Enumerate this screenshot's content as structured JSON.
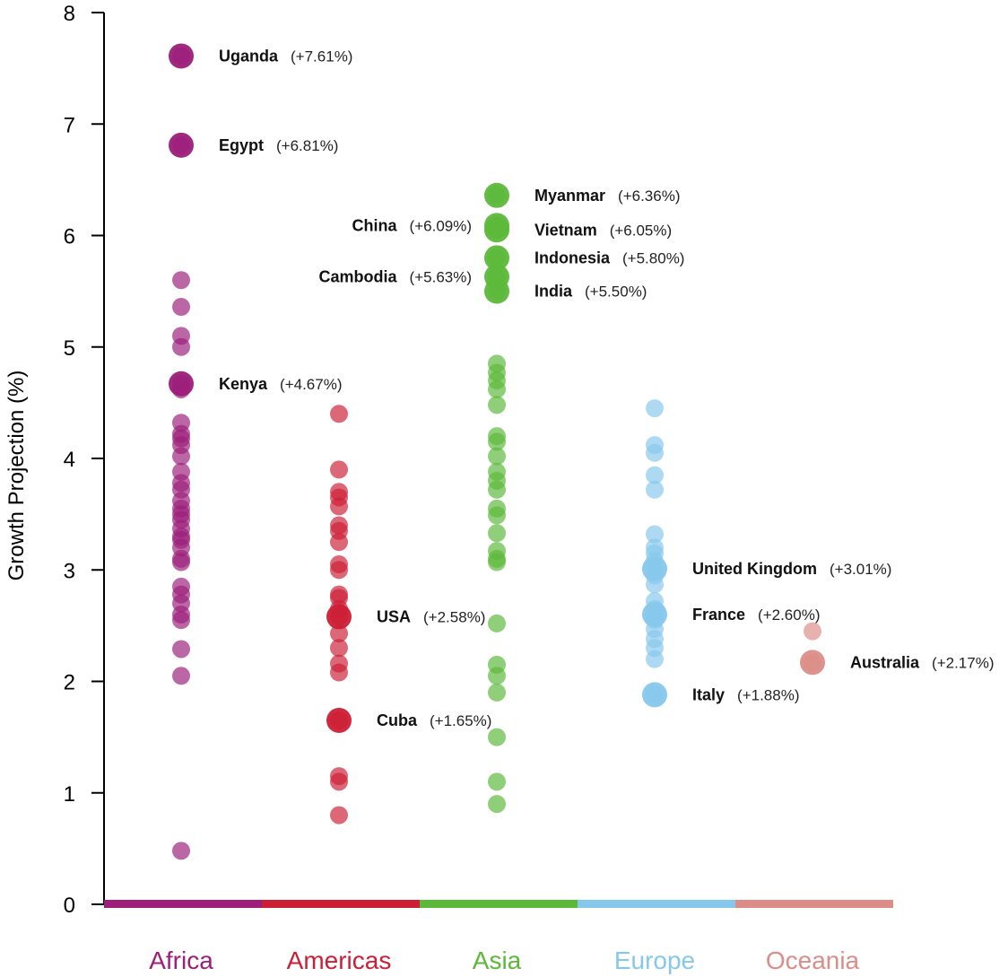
{
  "chart_data": {
    "type": "scatter",
    "title": "",
    "xlabel": "",
    "ylabel": "Growth Projection (%)",
    "ylim": [
      0,
      8
    ],
    "yticks": [
      "0",
      "1",
      "2",
      "3",
      "4",
      "5",
      "6",
      "7",
      "8"
    ],
    "categories": [
      "Africa",
      "Americas",
      "Asia",
      "Europe",
      "Oceania"
    ],
    "colors": {
      "Africa": "#9c1f7a",
      "Americas": "#cc1f36",
      "Asia": "#5cb83a",
      "Europe": "#86c8ec",
      "Oceania": "#dc8d88"
    },
    "grid": false,
    "legend": "none",
    "series": [
      {
        "category": "Africa",
        "values": [
          0.48,
          2.05,
          2.29,
          2.55,
          2.6,
          2.7,
          2.78,
          2.85,
          3.07,
          3.1,
          3.2,
          3.27,
          3.3,
          3.37,
          3.45,
          3.5,
          3.55,
          3.62,
          3.72,
          3.78,
          3.88,
          4.02,
          4.12,
          4.18,
          4.22,
          4.32,
          4.62,
          4.67,
          5.0,
          5.1,
          5.36,
          5.6,
          6.81,
          7.61
        ]
      },
      {
        "category": "Americas",
        "values": [
          0.8,
          1.1,
          1.15,
          1.65,
          2.08,
          2.16,
          2.3,
          2.43,
          2.58,
          2.65,
          2.75,
          2.78,
          3.0,
          3.05,
          3.25,
          3.35,
          3.4,
          3.57,
          3.65,
          3.7,
          3.9,
          4.4
        ]
      },
      {
        "category": "Asia",
        "values": [
          0.9,
          1.1,
          1.5,
          1.9,
          2.05,
          2.15,
          2.52,
          3.07,
          3.1,
          3.17,
          3.33,
          3.49,
          3.55,
          3.72,
          3.8,
          3.88,
          4.02,
          4.15,
          4.2,
          4.48,
          4.62,
          4.7,
          4.77,
          4.85,
          5.5,
          5.63,
          5.8,
          6.05,
          6.09,
          6.36
        ]
      },
      {
        "category": "Europe",
        "values": [
          1.88,
          2.2,
          2.3,
          2.38,
          2.47,
          2.55,
          2.6,
          2.65,
          2.72,
          2.87,
          2.95,
          3.01,
          3.08,
          3.15,
          3.2,
          3.32,
          3.72,
          3.85,
          4.05,
          4.12,
          4.45
        ]
      },
      {
        "category": "Oceania",
        "values": [
          2.17,
          2.45
        ]
      }
    ],
    "annotations": [
      {
        "category": "Africa",
        "name": "Uganda",
        "value": 7.61,
        "text": "(+7.61%)",
        "side": "right"
      },
      {
        "category": "Africa",
        "name": "Egypt",
        "value": 6.81,
        "text": "(+6.81%)",
        "side": "right"
      },
      {
        "category": "Africa",
        "name": "Kenya",
        "value": 4.67,
        "text": "(+4.67%)",
        "side": "right"
      },
      {
        "category": "Americas",
        "name": "USA",
        "value": 2.58,
        "text": "(+2.58%)",
        "side": "right"
      },
      {
        "category": "Americas",
        "name": "Cuba",
        "value": 1.65,
        "text": "(+1.65%)",
        "side": "right"
      },
      {
        "category": "Asia",
        "name": "Myanmar",
        "value": 6.36,
        "text": "(+6.36%)",
        "side": "right"
      },
      {
        "category": "Asia",
        "name": "China",
        "value": 6.09,
        "text": "(+6.09%)",
        "side": "left"
      },
      {
        "category": "Asia",
        "name": "Vietnam",
        "value": 6.05,
        "text": "(+6.05%)",
        "side": "right"
      },
      {
        "category": "Asia",
        "name": "Indonesia",
        "value": 5.8,
        "text": "(+5.80%)",
        "side": "right"
      },
      {
        "category": "Asia",
        "name": "Cambodia",
        "value": 5.63,
        "text": "(+5.63%)",
        "side": "left"
      },
      {
        "category": "Asia",
        "name": "India",
        "value": 5.5,
        "text": "(+5.50%)",
        "side": "right"
      },
      {
        "category": "Europe",
        "name": "United Kingdom",
        "value": 3.01,
        "text": "(+3.01%)",
        "side": "right"
      },
      {
        "category": "Europe",
        "name": "France",
        "value": 2.6,
        "text": "(+2.60%)",
        "side": "right"
      },
      {
        "category": "Europe",
        "name": "Italy",
        "value": 1.88,
        "text": "(+1.88%)",
        "side": "right"
      },
      {
        "category": "Oceania",
        "name": "Australia",
        "value": 2.17,
        "text": "(+2.17%)",
        "side": "right"
      }
    ]
  }
}
